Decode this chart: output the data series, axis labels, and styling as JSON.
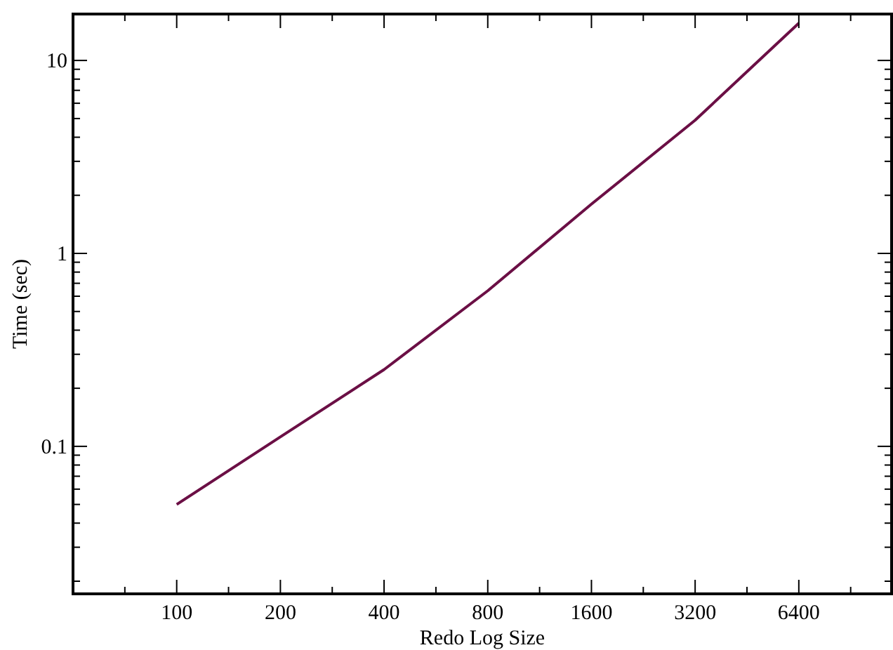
{
  "chart_data": {
    "type": "line",
    "xlabel": "Redo Log Size",
    "ylabel": "Time (sec)",
    "log": "xy",
    "grid": false,
    "marker": "none",
    "line_style": "solid",
    "xlim": [
      50,
      11900
    ],
    "ylim": [
      0.0172,
      17.4
    ],
    "xticks": [
      {
        "value": 70.71,
        "label": null
      },
      100,
      {
        "value": 141.42,
        "label": null
      },
      200,
      {
        "value": 282.84,
        "label": null
      },
      400,
      {
        "value": 565.69,
        "label": null
      },
      800,
      {
        "value": 1131.37,
        "label": null
      },
      1600,
      {
        "value": 2262.74,
        "label": null
      },
      3200,
      {
        "value": 4525.48,
        "label": null
      },
      6400,
      {
        "value": 9050.97,
        "label": null
      }
    ],
    "yticks": [
      {
        "value": 0.02,
        "label": null
      },
      {
        "value": 0.03,
        "label": null
      },
      {
        "value": 0.04,
        "label": null
      },
      {
        "value": 0.05,
        "label": null
      },
      {
        "value": 0.06,
        "label": null
      },
      {
        "value": 0.07,
        "label": null
      },
      {
        "value": 0.08,
        "label": null
      },
      {
        "value": 0.09,
        "label": null
      },
      0.1,
      {
        "value": 0.2,
        "label": null
      },
      {
        "value": 0.3,
        "label": null
      },
      {
        "value": 0.4,
        "label": null
      },
      {
        "value": 0.5,
        "label": null
      },
      {
        "value": 0.6,
        "label": null
      },
      {
        "value": 0.7,
        "label": null
      },
      {
        "value": 0.8,
        "label": null
      },
      {
        "value": 0.9,
        "label": null
      },
      1,
      {
        "value": 2,
        "label": null
      },
      {
        "value": 3,
        "label": null
      },
      {
        "value": 4,
        "label": null
      },
      {
        "value": 5,
        "label": null
      },
      {
        "value": 6,
        "label": null
      },
      {
        "value": 7,
        "label": null
      },
      {
        "value": 8,
        "label": null
      },
      {
        "value": 9,
        "label": null
      },
      10
    ],
    "x": [
      100,
      200,
      400,
      800,
      1600,
      3200,
      6400
    ],
    "series": [
      {
        "color": "#6b0f45",
        "values": [
          0.05,
          0.112,
          0.25,
          0.64,
          1.8,
          4.9,
          15.6
        ]
      }
    ]
  }
}
